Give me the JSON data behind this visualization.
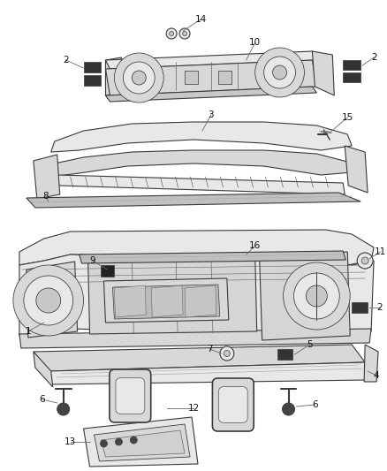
{
  "bg_color": "#ffffff",
  "lc": "#3a3a3a",
  "lc2": "#666666",
  "fill_main": "#e8e8e8",
  "fill_dark": "#c8c8c8",
  "fill_med": "#d8d8d8",
  "label_fs": 7.5,
  "fig_width": 4.38,
  "fig_height": 5.33,
  "dpi": 100
}
